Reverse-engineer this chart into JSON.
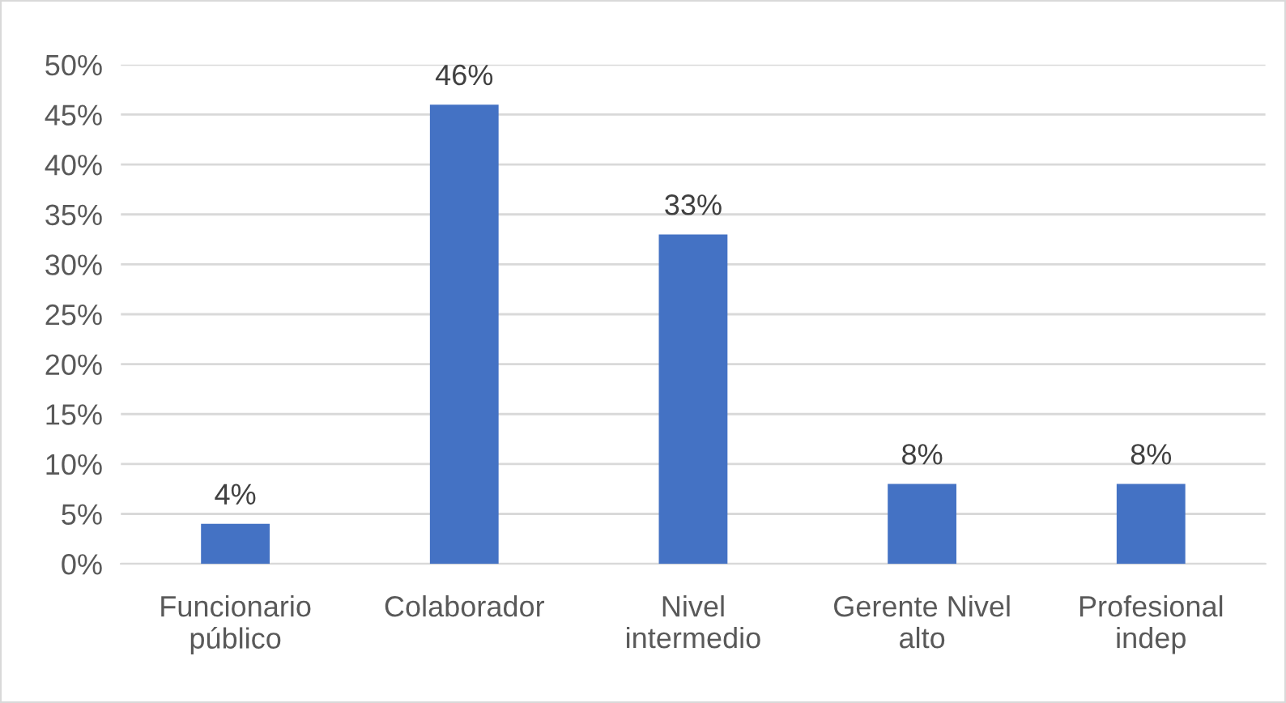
{
  "chart_data": {
    "type": "bar",
    "categories": [
      "Funcionario\npúblico",
      "Colaborador",
      "Nivel\nintermedio",
      "Gerente Nivel\nalto",
      "Profesional\nindep"
    ],
    "values": [
      4,
      46,
      33,
      8,
      8
    ],
    "value_labels": [
      "4%",
      "46%",
      "33%",
      "8%",
      "8%"
    ],
    "color": "#4472c4",
    "ylim": [
      0,
      50
    ],
    "yticks": [
      {
        "value": 0,
        "label": "0%"
      },
      {
        "value": 5,
        "label": "5%"
      },
      {
        "value": 10,
        "label": "10%"
      },
      {
        "value": 15,
        "label": "15%"
      },
      {
        "value": 20,
        "label": "20%"
      },
      {
        "value": 25,
        "label": "25%"
      },
      {
        "value": 30,
        "label": "30%"
      },
      {
        "value": 35,
        "label": "35%"
      },
      {
        "value": 40,
        "label": "40%"
      },
      {
        "value": 45,
        "label": "45%"
      },
      {
        "value": 50,
        "label": "50%"
      }
    ],
    "grid": "y"
  }
}
